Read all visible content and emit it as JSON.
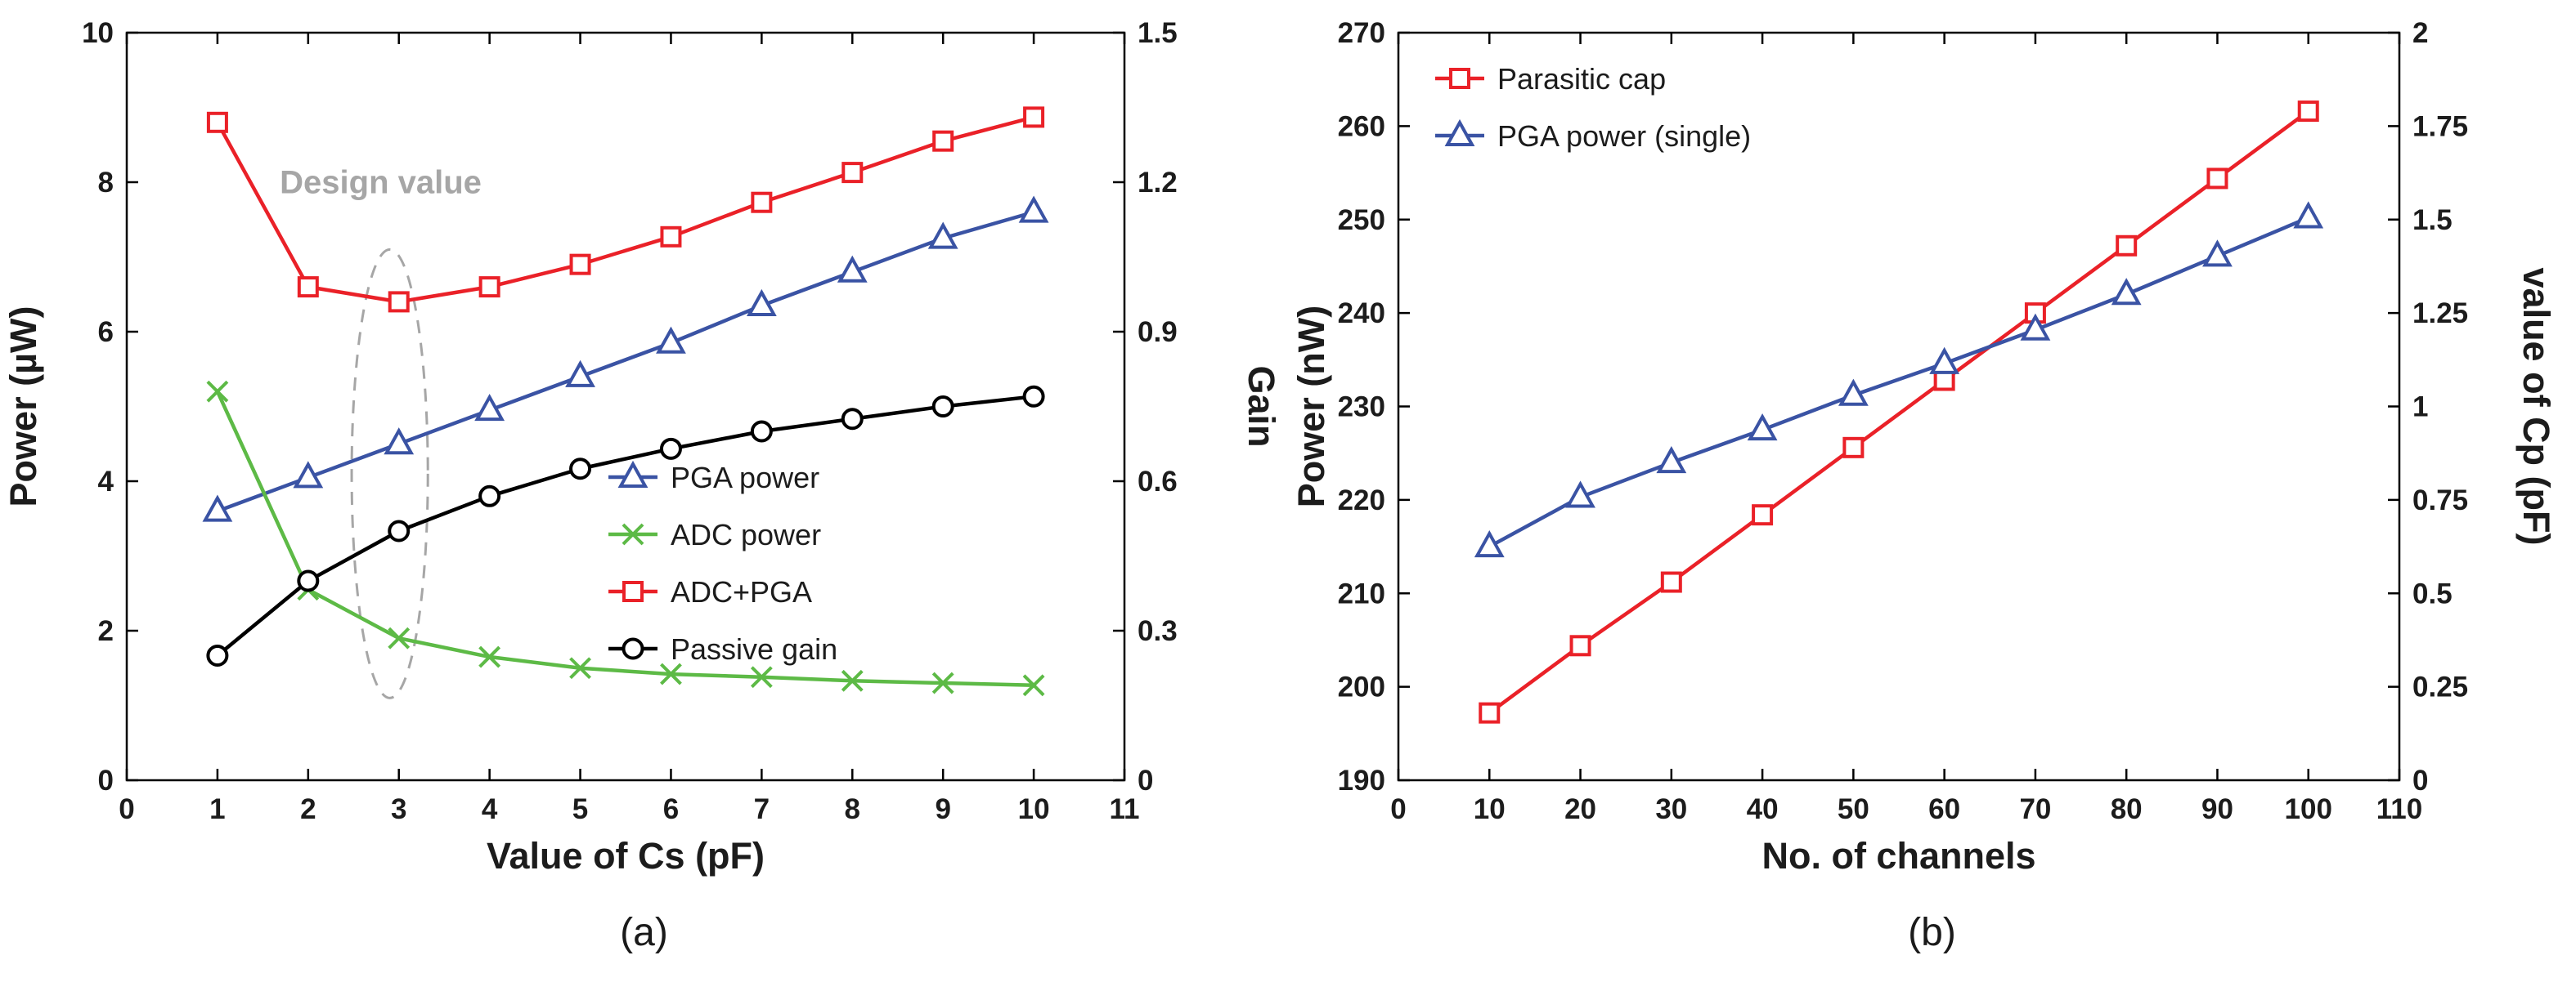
{
  "figure": {
    "background": "#ffffff",
    "axis_color": "#000000",
    "text_color": "#1c1c1c"
  },
  "chart_data": [
    {
      "type": "line",
      "caption": "(a)",
      "title": "",
      "xlabel": "Value of Cs (pF)",
      "ylabel_left": "Power (µW)",
      "ylabel_right": "Gain",
      "xlim": [
        0,
        11
      ],
      "ylim_left": [
        0,
        10
      ],
      "ylim_right": [
        0,
        1.5
      ],
      "xticks": [
        0,
        1,
        2,
        3,
        4,
        5,
        6,
        7,
        8,
        9,
        10,
        11
      ],
      "yticks_left": [
        0,
        2,
        4,
        6,
        8,
        10
      ],
      "yticks_right": [
        0,
        0.3,
        0.6,
        0.9,
        1.2,
        1.5
      ],
      "grid": false,
      "legend_position": "inside-right-middle",
      "x": [
        1,
        2,
        3,
        4,
        5,
        6,
        7,
        8,
        9,
        10
      ],
      "series": [
        {
          "name": "PGA power",
          "color": "#3a53a4",
          "marker": "triangle",
          "axis": "left",
          "values": [
            3.6,
            4.05,
            4.5,
            4.95,
            5.4,
            5.85,
            6.35,
            6.8,
            7.25,
            7.6
          ]
        },
        {
          "name": "ADC power",
          "color": "#5dba46",
          "marker": "x",
          "axis": "left",
          "values": [
            5.2,
            2.55,
            1.9,
            1.65,
            1.5,
            1.42,
            1.38,
            1.33,
            1.3,
            1.27
          ]
        },
        {
          "name": "ADC+PGA",
          "color": "#ea2128",
          "marker": "square",
          "axis": "left",
          "values": [
            8.8,
            6.6,
            6.4,
            6.6,
            6.9,
            7.27,
            7.73,
            8.13,
            8.55,
            8.87
          ]
        },
        {
          "name": "Passive gain",
          "color": "#000000",
          "marker": "circle",
          "axis": "right",
          "values": [
            0.25,
            0.4,
            0.5,
            0.57,
            0.625,
            0.665,
            0.7,
            0.725,
            0.75,
            0.77
          ]
        }
      ],
      "annotation": {
        "text": "Design value",
        "x": 2.8,
        "y": 7.85,
        "color": "#a6a6a6",
        "ellipse": {
          "cx": 2.9,
          "cy": 4.1,
          "rx": 0.42,
          "ry": 3.0
        }
      }
    },
    {
      "type": "line",
      "caption": "(b)",
      "title": "",
      "xlabel": "No. of channels",
      "ylabel_left": "Power (nW)",
      "ylabel_right": "value of Cp (pF)",
      "xlim": [
        0,
        110
      ],
      "ylim_left": [
        190,
        270
      ],
      "ylim_right": [
        0,
        2
      ],
      "xticks": [
        0,
        10,
        20,
        30,
        40,
        50,
        60,
        70,
        80,
        90,
        100,
        110
      ],
      "yticks_left": [
        190,
        200,
        210,
        220,
        230,
        240,
        250,
        260,
        270
      ],
      "yticks_right": [
        0,
        0.25,
        0.5,
        0.75,
        1,
        1.25,
        1.5,
        1.75,
        2
      ],
      "grid": false,
      "legend_position": "inside-top-left",
      "x": [
        10,
        20,
        30,
        40,
        50,
        60,
        70,
        80,
        90,
        100
      ],
      "series": [
        {
          "name": "Parasitic cap",
          "color": "#ea2128",
          "marker": "square",
          "axis": "right",
          "values": [
            0.18,
            0.36,
            0.53,
            0.71,
            0.89,
            1.07,
            1.25,
            1.43,
            1.61,
            1.79
          ]
        },
        {
          "name": "PGA power (single)",
          "color": "#3a53a4",
          "marker": "triangle",
          "axis": "left",
          "values": [
            215.0,
            220.3,
            224.0,
            227.5,
            231.2,
            234.6,
            238.2,
            242.0,
            246.1,
            250.2
          ]
        }
      ]
    }
  ]
}
